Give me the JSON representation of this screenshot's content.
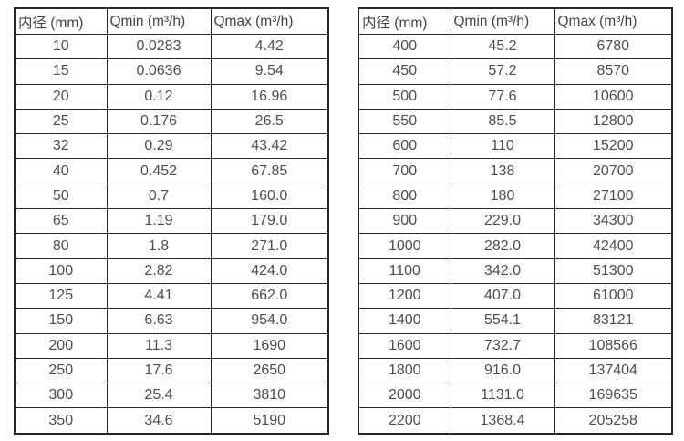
{
  "colors": {
    "background": "#ffffff",
    "border": "#262626",
    "header_text": "#424242",
    "cell_text": "#4d4d4d"
  },
  "tables": [
    {
      "name": "flow-table-small-diameters",
      "headers": [
        "内径 (mm)",
        "Qmin (m³/h)",
        "Qmax (m³/h)"
      ],
      "rows": [
        [
          "10",
          "0.0283",
          "4.42"
        ],
        [
          "15",
          "0.0636",
          "9.54"
        ],
        [
          "20",
          "0.12",
          "16.96"
        ],
        [
          "25",
          "0.176",
          "26.5"
        ],
        [
          "32",
          "0.29",
          "43.42"
        ],
        [
          "40",
          "0.452",
          "67.85"
        ],
        [
          "50",
          "0.7",
          "160.0"
        ],
        [
          "65",
          "1.19",
          "179.0"
        ],
        [
          "80",
          "1.8",
          "271.0"
        ],
        [
          "100",
          "2.82",
          "424.0"
        ],
        [
          "125",
          "4.41",
          "662.0"
        ],
        [
          "150",
          "6.63",
          "954.0"
        ],
        [
          "200",
          "11.3",
          "1690"
        ],
        [
          "250",
          "17.6",
          "2650"
        ],
        [
          "300",
          "25.4",
          "3810"
        ],
        [
          "350",
          "34.6",
          "5190"
        ]
      ]
    },
    {
      "name": "flow-table-large-diameters",
      "headers": [
        "内径 (mm)",
        "Qmin (m³/h)",
        "Qmax (m³/h)"
      ],
      "rows": [
        [
          "400",
          "45.2",
          "6780"
        ],
        [
          "450",
          "57.2",
          "8570"
        ],
        [
          "500",
          "77.6",
          "10600"
        ],
        [
          "550",
          "85.5",
          "12800"
        ],
        [
          "600",
          "110",
          "15200"
        ],
        [
          "700",
          "138",
          "20700"
        ],
        [
          "800",
          "180",
          "27100"
        ],
        [
          "900",
          "229.0",
          "34300"
        ],
        [
          "1000",
          "282.0",
          "42400"
        ],
        [
          "1100",
          "342.0",
          "51300"
        ],
        [
          "1200",
          "407.0",
          "61000"
        ],
        [
          "1400",
          "554.1",
          "83121"
        ],
        [
          "1600",
          "732.7",
          "108566"
        ],
        [
          "1800",
          "916.0",
          "137404"
        ],
        [
          "2000",
          "1131.0",
          "169635"
        ],
        [
          "2200",
          "1368.4",
          "205258"
        ]
      ]
    }
  ]
}
